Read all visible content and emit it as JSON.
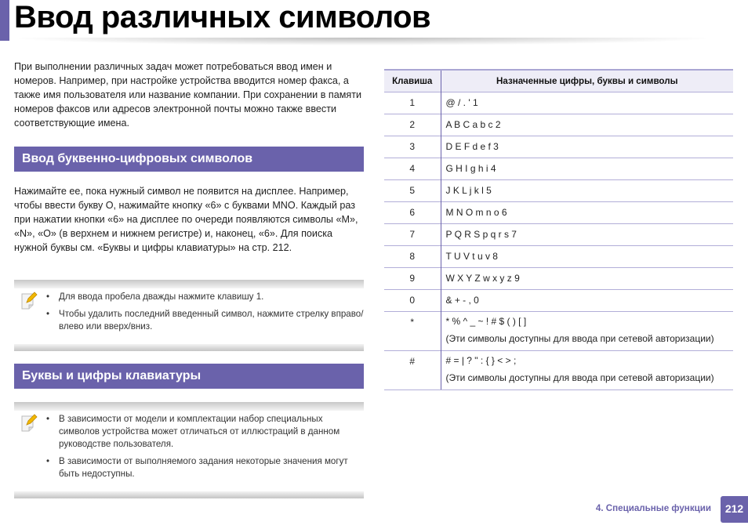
{
  "title": "Ввод различных символов",
  "intro": "При выполнении различных задач может потребоваться ввод имен и номеров. Например, при настройке устройства вводится номер факса, а также имя пользователя или название компании. При сохранении в памяти номеров факсов или адресов электронной почты можно также ввести соответствующие имена.",
  "section1": {
    "heading": "Ввод буквенно-цифровых символов",
    "text": "Нажимайте ее, пока нужный символ не появится на дисплее. Например, чтобы ввести букву O, нажимайте кнопку «6» с буквами MNO. Каждый раз при нажатии кнопки «6» на дисплее по очереди появляются символы «M», «N», «O» (в верхнем и нижнем регистре) и, наконец, «6». Для поиска нужной буквы см. «Буквы и цифры клавиатуры» на стр. 212."
  },
  "note1": [
    "Для ввода пробела дважды нажмите клавишу 1.",
    "Чтобы удалить последний введенный символ, нажмите стрелку вправо/влево или вверх/вниз."
  ],
  "section2": {
    "heading": "Буквы и цифры клавиатуры"
  },
  "note2": [
    "В зависимости от модели и комплектации набор специальных символов устройства может отличаться от иллюстраций в данном руководстве пользователя.",
    "В зависимости от выполняемого задания некоторые значения могут быть недоступны."
  ],
  "table": {
    "headers": [
      "Клавиша",
      "Назначенные цифры, буквы и символы"
    ],
    "rows": [
      {
        "key": "1",
        "value": "@ / . ' 1"
      },
      {
        "key": "2",
        "value": "A B C a b c 2"
      },
      {
        "key": "3",
        "value": "D E F d e f 3"
      },
      {
        "key": "4",
        "value": "G H I g h i 4"
      },
      {
        "key": "5",
        "value": "J K L j k l 5"
      },
      {
        "key": "6",
        "value": "M N O m n o 6"
      },
      {
        "key": "7",
        "value": "P Q R S p q r s 7"
      },
      {
        "key": "8",
        "value": "T U V t u v 8"
      },
      {
        "key": "9",
        "value": "W X Y Z w x y z 9"
      },
      {
        "key": "0",
        "value": "& + - , 0"
      },
      {
        "key": "*",
        "value": "* % ^ _ ~ ! # $ ( ) [ ]",
        "note": "(Эти символы доступны для ввода при сетевой авторизации)"
      },
      {
        "key": "#",
        "value": "# = | ? \" : { } < > ;",
        "note": "(Эти символы доступны для ввода при сетевой авторизации)"
      }
    ]
  },
  "footer": {
    "chapter": "4.  Специальные функции",
    "page": "212"
  },
  "colors": {
    "accent": "#6a62ab"
  }
}
